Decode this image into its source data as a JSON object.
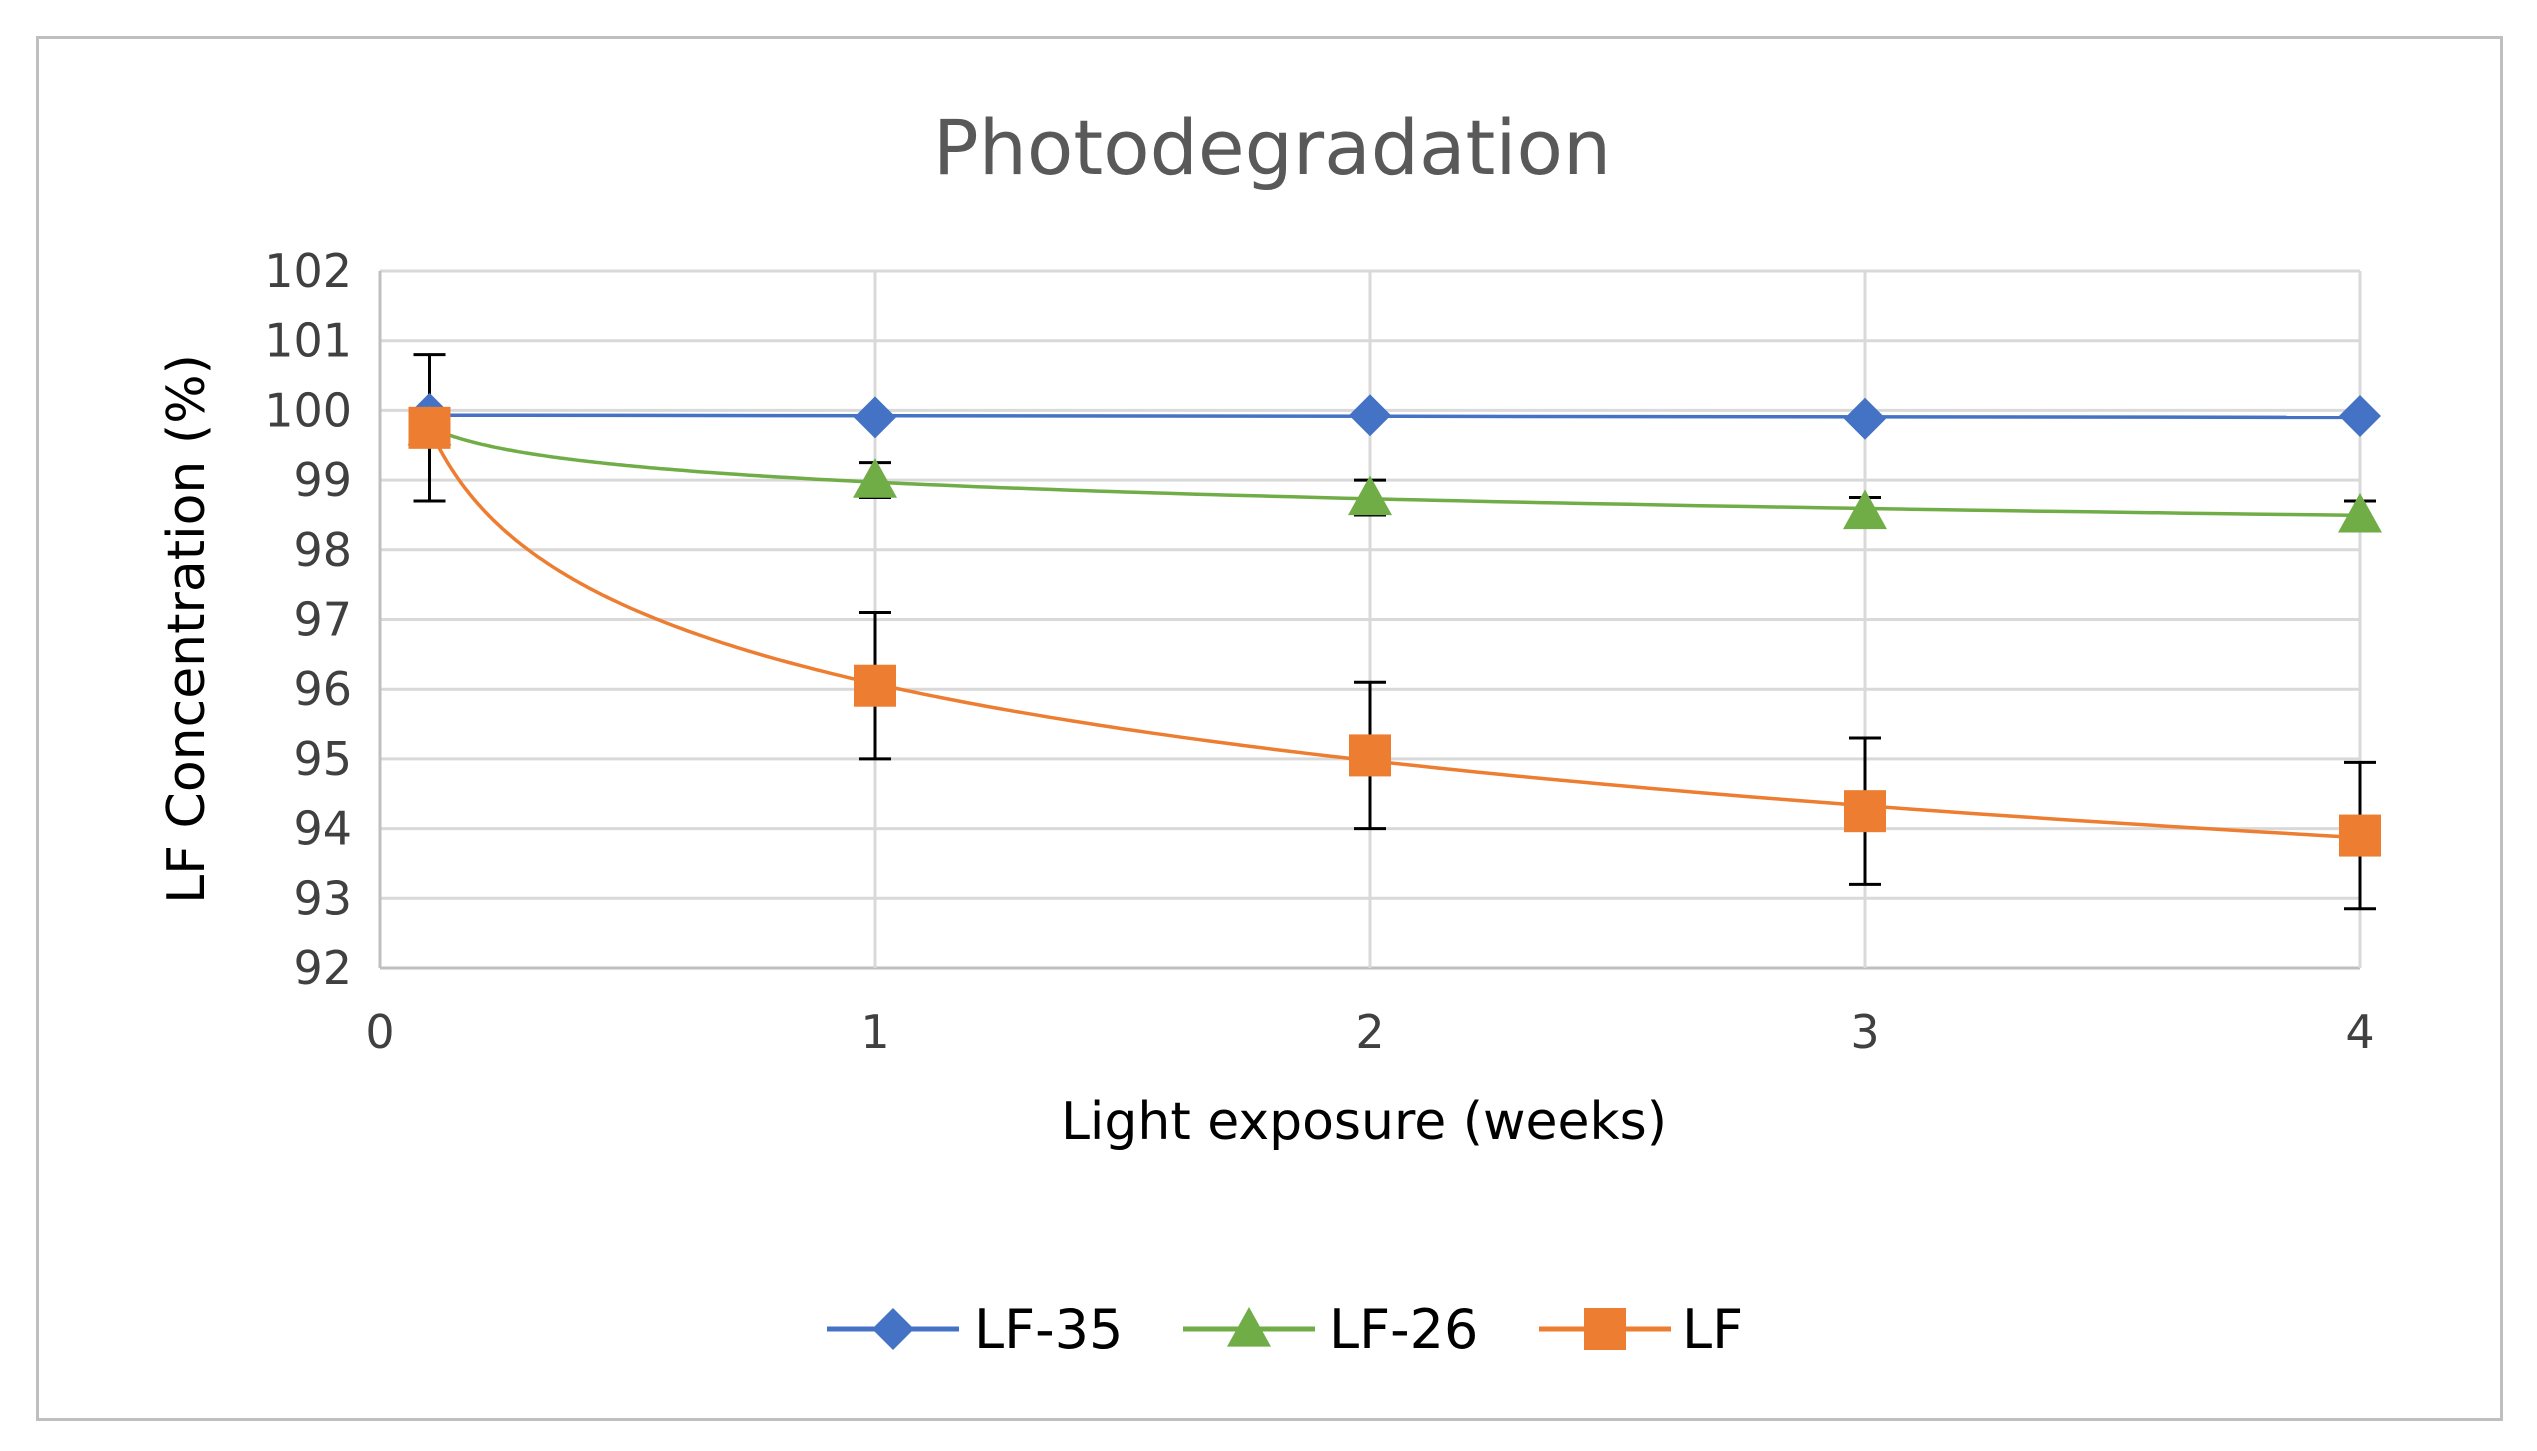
{
  "chart_data": {
    "type": "line",
    "title": "Photodegradation",
    "xlabel": "Light exposure (weeks)",
    "ylabel": "LF Concentration (%)",
    "xlim": [
      0,
      4
    ],
    "ylim": [
      92,
      102
    ],
    "xticks": [
      "0",
      "1",
      "2",
      "3",
      "4"
    ],
    "yticks": [
      "92",
      "93",
      "94",
      "95",
      "96",
      "97",
      "98",
      "99",
      "100",
      "101",
      "102"
    ],
    "grid": true,
    "legend_position": "bottom",
    "series": [
      {
        "name": "LF-35",
        "marker": "diamond",
        "color": "#4472C4",
        "x": [
          0.1,
          1,
          2,
          3,
          4
        ],
        "y": [
          99.95,
          99.9,
          99.93,
          99.88,
          99.92
        ],
        "trend": "linear"
      },
      {
        "name": "LF-26",
        "marker": "triangle",
        "color": "#70AD47",
        "x": [
          0.1,
          1,
          2,
          3,
          4
        ],
        "y": [
          99.75,
          99.0,
          98.75,
          98.55,
          98.5
        ],
        "trend": "log",
        "error": [
          0.1,
          0.25,
          0.25,
          0.2,
          0.2
        ]
      },
      {
        "name": "LF",
        "marker": "square",
        "color": "#ED7D31",
        "x": [
          0.1,
          1,
          2,
          3,
          4
        ],
        "y": [
          99.75,
          96.05,
          95.05,
          94.25,
          93.9
        ],
        "trend": "log",
        "error": [
          1.05,
          1.05,
          1.05,
          1.05,
          1.05
        ]
      }
    ]
  }
}
